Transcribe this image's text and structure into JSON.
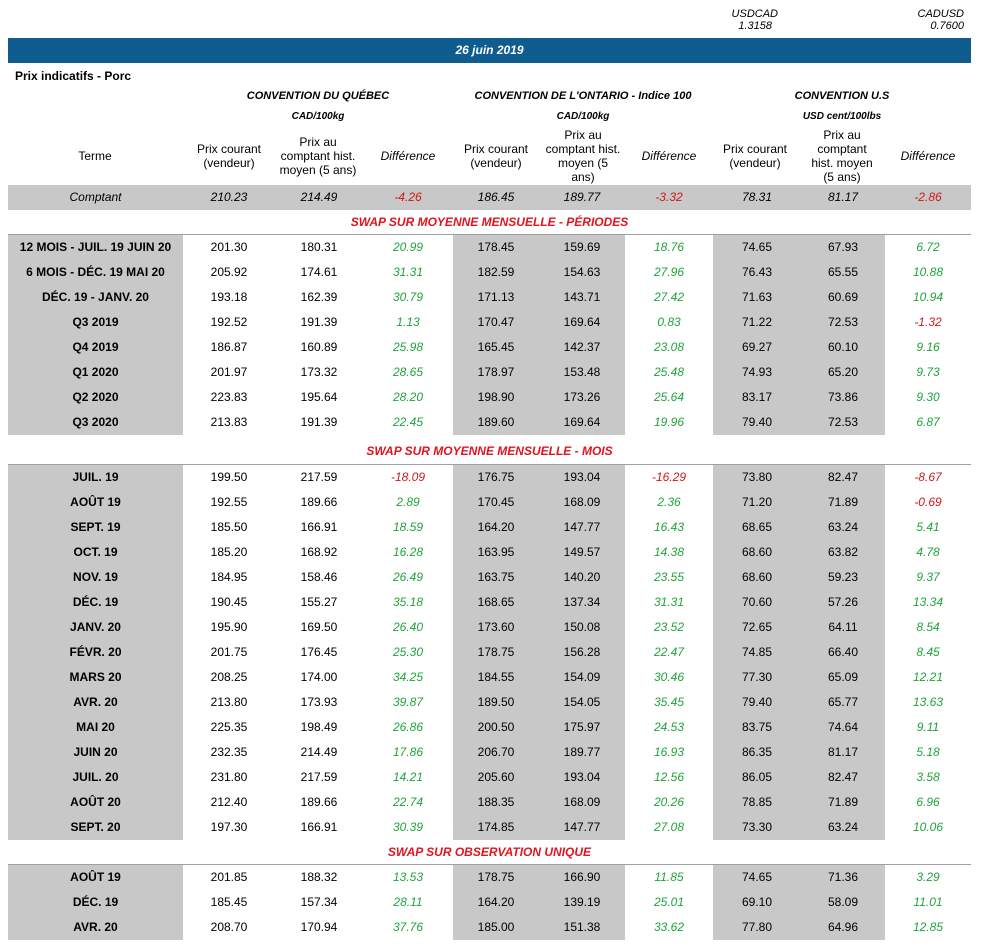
{
  "fx": [
    {
      "label": "USDCAD",
      "value": "1.3158"
    },
    {
      "label": "CADUSD",
      "value": "0.7600"
    }
  ],
  "date": "26 juin 2019",
  "subtitle": "Prix indicatifs - Porc",
  "conventions": [
    {
      "name": "CONVENTION DU QUÉBEC",
      "unit": "CAD/100kg"
    },
    {
      "name": "CONVENTION DE L'ONTARIO - Indice 100",
      "unit": "CAD/100kg"
    },
    {
      "name": "CONVENTION U.S",
      "unit": "USD cent/100lbs"
    }
  ],
  "headers": {
    "term": "Terme",
    "current": "Prix courant (vendeur)",
    "hist": "Prix au comptant hist. moyen (5 ans)",
    "diff": "Différence"
  },
  "spot": {
    "term": "Comptant",
    "values": [
      "210.23",
      "214.49",
      "-4.26",
      "186.45",
      "189.77",
      "-3.32",
      "78.31",
      "81.17",
      "-2.86"
    ]
  },
  "sections": [
    {
      "title": "SWAP SUR MOYENNE MENSUELLE - PÉRIODES",
      "rows": [
        {
          "term": "12 MOIS -  JUIL. 19 JUIN 20",
          "values": [
            "201.30",
            "180.31",
            "20.99",
            "178.45",
            "159.69",
            "18.76",
            "74.65",
            "67.93",
            "6.72"
          ]
        },
        {
          "term": "6 MOIS -  DÉC. 19 MAI 20",
          "values": [
            "205.92",
            "174.61",
            "31.31",
            "182.59",
            "154.63",
            "27.96",
            "76.43",
            "65.55",
            "10.88"
          ]
        },
        {
          "term": "DÉC. 19 -  JANV. 20",
          "values": [
            "193.18",
            "162.39",
            "30.79",
            "171.13",
            "143.71",
            "27.42",
            "71.63",
            "60.69",
            "10.94"
          ]
        },
        {
          "term": "Q3 2019",
          "values": [
            "192.52",
            "191.39",
            "1.13",
            "170.47",
            "169.64",
            "0.83",
            "71.22",
            "72.53",
            "-1.32"
          ]
        },
        {
          "term": "Q4 2019",
          "values": [
            "186.87",
            "160.89",
            "25.98",
            "165.45",
            "142.37",
            "23.08",
            "69.27",
            "60.10",
            "9.16"
          ]
        },
        {
          "term": "Q1 2020",
          "values": [
            "201.97",
            "173.32",
            "28.65",
            "178.97",
            "153.48",
            "25.48",
            "74.93",
            "65.20",
            "9.73"
          ]
        },
        {
          "term": "Q2 2020",
          "values": [
            "223.83",
            "195.64",
            "28.20",
            "198.90",
            "173.26",
            "25.64",
            "83.17",
            "73.86",
            "9.30"
          ]
        },
        {
          "term": "Q3 2020",
          "values": [
            "213.83",
            "191.39",
            "22.45",
            "189.60",
            "169.64",
            "19.96",
            "79.40",
            "72.53",
            "6.87"
          ]
        }
      ]
    },
    {
      "title": "SWAP SUR MOYENNE MENSUELLE - MOIS",
      "rows": [
        {
          "term": "JUIL. 19",
          "values": [
            "199.50",
            "217.59",
            "-18.09",
            "176.75",
            "193.04",
            "-16.29",
            "73.80",
            "82.47",
            "-8.67"
          ]
        },
        {
          "term": "AOÛT 19",
          "values": [
            "192.55",
            "189.66",
            "2.89",
            "170.45",
            "168.09",
            "2.36",
            "71.20",
            "71.89",
            "-0.69"
          ]
        },
        {
          "term": "SEPT. 19",
          "values": [
            "185.50",
            "166.91",
            "18.59",
            "164.20",
            "147.77",
            "16.43",
            "68.65",
            "63.24",
            "5.41"
          ]
        },
        {
          "term": "OCT. 19",
          "values": [
            "185.20",
            "168.92",
            "16.28",
            "163.95",
            "149.57",
            "14.38",
            "68.60",
            "63.82",
            "4.78"
          ]
        },
        {
          "term": "NOV. 19",
          "values": [
            "184.95",
            "158.46",
            "26.49",
            "163.75",
            "140.20",
            "23.55",
            "68.60",
            "59.23",
            "9.37"
          ]
        },
        {
          "term": "DÉC. 19",
          "values": [
            "190.45",
            "155.27",
            "35.18",
            "168.65",
            "137.34",
            "31.31",
            "70.60",
            "57.26",
            "13.34"
          ]
        },
        {
          "term": "JANV. 20",
          "values": [
            "195.90",
            "169.50",
            "26.40",
            "173.60",
            "150.08",
            "23.52",
            "72.65",
            "64.11",
            "8.54"
          ]
        },
        {
          "term": "FÉVR. 20",
          "values": [
            "201.75",
            "176.45",
            "25.30",
            "178.75",
            "156.28",
            "22.47",
            "74.85",
            "66.40",
            "8.45"
          ]
        },
        {
          "term": "MARS 20",
          "values": [
            "208.25",
            "174.00",
            "34.25",
            "184.55",
            "154.09",
            "30.46",
            "77.30",
            "65.09",
            "12.21"
          ]
        },
        {
          "term": "AVR. 20",
          "values": [
            "213.80",
            "173.93",
            "39.87",
            "189.50",
            "154.05",
            "35.45",
            "79.40",
            "65.77",
            "13.63"
          ]
        },
        {
          "term": "MAI 20",
          "values": [
            "225.35",
            "198.49",
            "26.86",
            "200.50",
            "175.97",
            "24.53",
            "83.75",
            "74.64",
            "9.11"
          ]
        },
        {
          "term": "JUIN 20",
          "values": [
            "232.35",
            "214.49",
            "17.86",
            "206.70",
            "189.77",
            "16.93",
            "86.35",
            "81.17",
            "5.18"
          ]
        },
        {
          "term": "JUIL. 20",
          "values": [
            "231.80",
            "217.59",
            "14.21",
            "205.60",
            "193.04",
            "12.56",
            "86.05",
            "82.47",
            "3.58"
          ]
        },
        {
          "term": "AOÛT 20",
          "values": [
            "212.40",
            "189.66",
            "22.74",
            "188.35",
            "168.09",
            "20.26",
            "78.85",
            "71.89",
            "6.96"
          ]
        },
        {
          "term": "SEPT. 20",
          "values": [
            "197.30",
            "166.91",
            "30.39",
            "174.85",
            "147.77",
            "27.08",
            "73.30",
            "63.24",
            "10.06"
          ]
        }
      ]
    },
    {
      "title": "SWAP SUR OBSERVATION UNIQUE",
      "rows": [
        {
          "term": "AOÛT 19",
          "values": [
            "201.85",
            "188.32",
            "13.53",
            "178.75",
            "166.90",
            "11.85",
            "74.65",
            "71.36",
            "3.29"
          ]
        },
        {
          "term": "DÉC. 19",
          "values": [
            "185.45",
            "157.34",
            "28.11",
            "164.20",
            "139.19",
            "25.01",
            "69.10",
            "58.09",
            "11.01"
          ]
        },
        {
          "term": "AVR. 20",
          "values": [
            "208.70",
            "170.94",
            "37.76",
            "185.00",
            "151.38",
            "33.62",
            "77.80",
            "64.96",
            "12.85"
          ]
        }
      ]
    }
  ]
}
